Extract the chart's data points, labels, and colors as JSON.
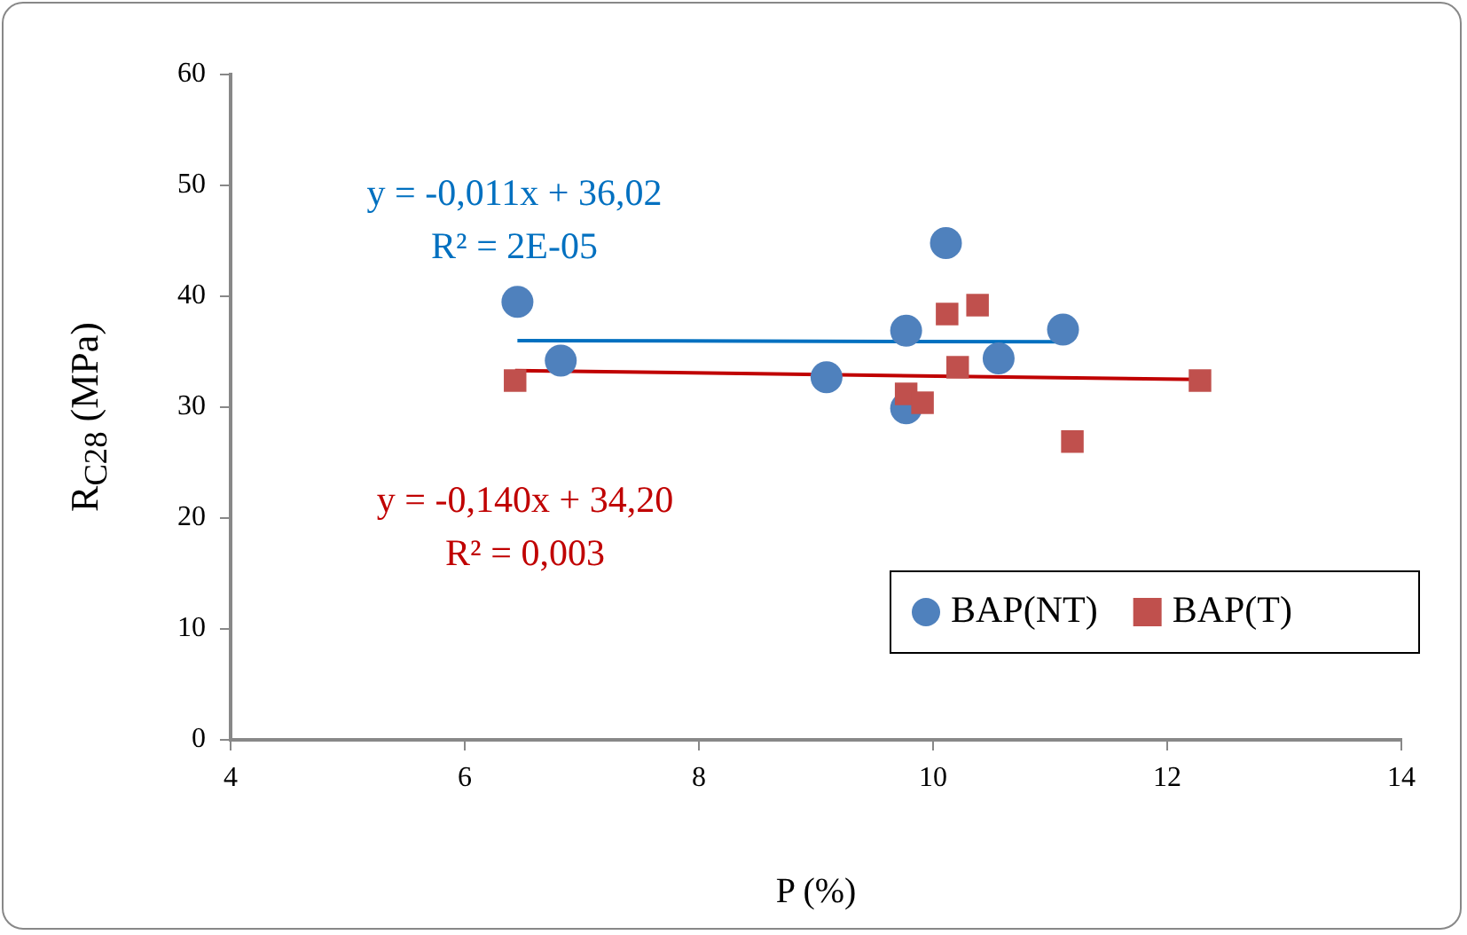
{
  "chart_data": {
    "type": "scatter",
    "xlabel": "P (%)",
    "ylabel": "R$_{C28}$ (MPa)",
    "xlim": [
      4,
      14
    ],
    "xticks": [
      4,
      6,
      8,
      10,
      12,
      14
    ],
    "ylim": [
      0,
      60
    ],
    "yticks": [
      0,
      10,
      20,
      30,
      40,
      50,
      60
    ],
    "grid": false,
    "legend": "bottom right",
    "series": [
      {
        "name": "BAP(NT)",
        "color": "#4f81bd",
        "marker": "circle",
        "x": [
          6.45,
          6.82,
          9.09,
          9.77,
          9.77,
          10.11,
          10.56,
          11.11
        ],
        "values": [
          39.5,
          34.2,
          32.7,
          36.9,
          29.9,
          44.8,
          34.4,
          37.0
        ]
      },
      {
        "name": "BAP(T)",
        "color": "#c0504d",
        "marker": "square",
        "x": [
          6.43,
          9.77,
          9.91,
          10.12,
          10.21,
          10.38,
          11.19,
          12.28
        ],
        "values": [
          32.4,
          31.2,
          30.4,
          38.4,
          33.6,
          39.2,
          26.9,
          32.4
        ]
      },
      {
        "type": "line",
        "color": "#0070c0",
        "marker": "none",
        "x": [
          6.45,
          11.11
        ],
        "values": [
          36.0,
          35.9
        ]
      },
      {
        "type": "line",
        "color": "#c00000",
        "marker": "none",
        "x": [
          6.43,
          12.28
        ],
        "values": [
          33.3,
          32.5
        ]
      }
    ],
    "annotations": [
      "y = -0,011x + 36,02",
      "R² = 2E-05",
      "y = -0,140x + 34,20",
      "R² = 0,003"
    ]
  }
}
